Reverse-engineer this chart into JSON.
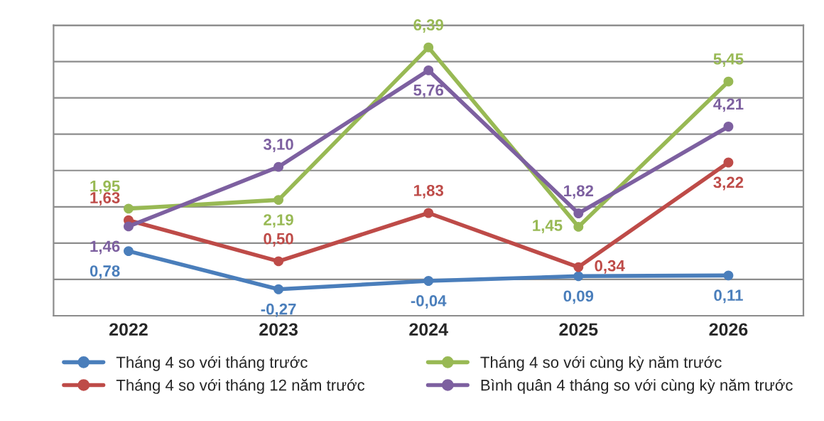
{
  "chart_data": {
    "type": "line",
    "categories": [
      "2022",
      "2023",
      "2024",
      "2025",
      "2026"
    ],
    "series": [
      {
        "name": "Tháng 4 so với tháng trước",
        "color": "#4a7ebb",
        "values": [
          0.78,
          -0.27,
          -0.04,
          0.09,
          0.11
        ],
        "value_labels": [
          "0,78",
          "-0,27",
          "-0,04",
          "0,09",
          "0,11"
        ]
      },
      {
        "name": "Tháng 4 so với tháng 12 năm trước",
        "color": "#be4b48",
        "values": [
          1.63,
          0.5,
          1.83,
          0.34,
          3.22
        ],
        "value_labels": [
          "1,63",
          "0,50",
          "1,83",
          "0,34",
          "3,22"
        ]
      },
      {
        "name": "Tháng 4 so với cùng kỳ năm trước",
        "color": "#98b954",
        "values": [
          1.95,
          2.19,
          6.39,
          1.45,
          5.45
        ],
        "value_labels": [
          "1,95",
          "2,19",
          "6,39",
          "1,45",
          "5,45"
        ]
      },
      {
        "name": "Bình quân 4 tháng so với cùng kỳ năm trước",
        "color": "#7d60a0",
        "values": [
          1.46,
          3.1,
          5.76,
          1.82,
          4.21
        ],
        "value_labels": [
          "1,46",
          "3,10",
          "5,76",
          "1,82",
          "4,21"
        ]
      }
    ],
    "tick_labels": "x",
    "grid": "y",
    "legend": "bottom",
    "marker": "circle",
    "line_style": "solid"
  }
}
